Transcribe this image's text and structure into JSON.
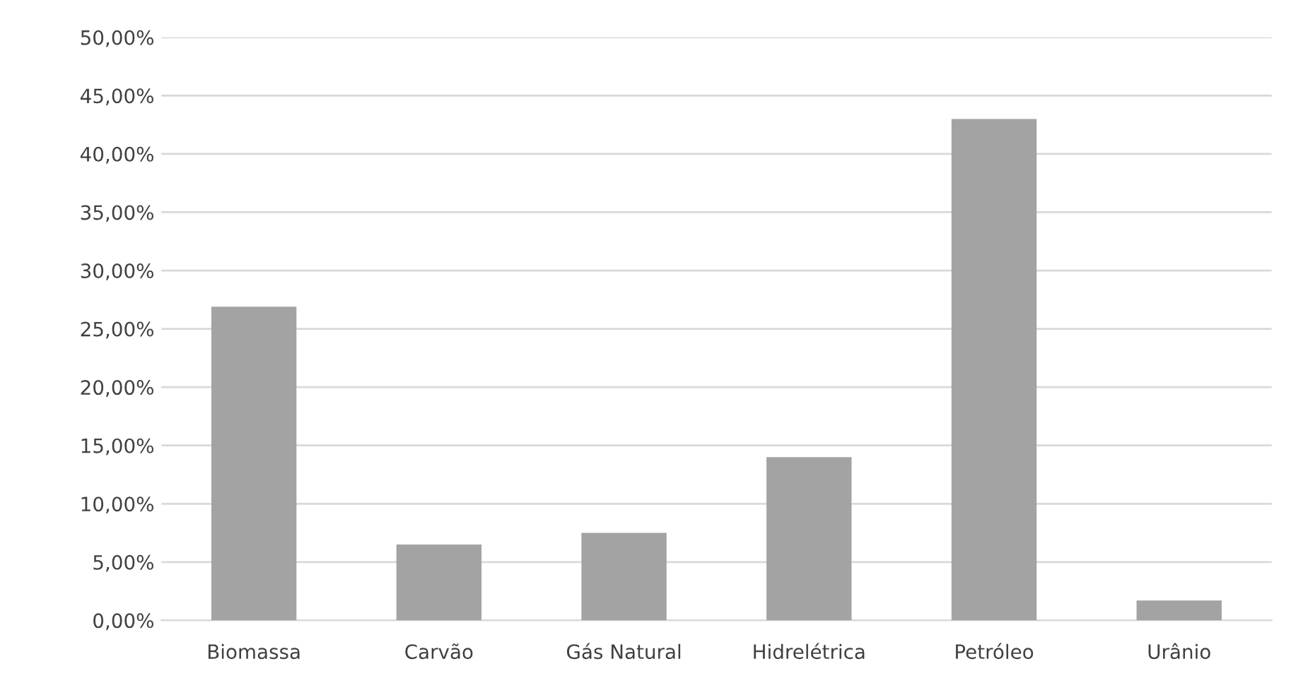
{
  "chart_data": {
    "type": "bar",
    "categories": [
      "Biomassa",
      "Carvão",
      "Gás Natural",
      "Hidrelétrica",
      "Petróleo",
      "Urânio"
    ],
    "values": [
      26.9,
      6.5,
      7.5,
      14.0,
      43.0,
      1.7
    ],
    "color": "#a3a3a3",
    "ylim": [
      0,
      50
    ],
    "yticks": [
      {
        "value": 0,
        "label": "0,00%"
      },
      {
        "value": 5,
        "label": "5,00%"
      },
      {
        "value": 10,
        "label": "10,00%"
      },
      {
        "value": 15,
        "label": "15,00%"
      },
      {
        "value": 20,
        "label": "20,00%"
      },
      {
        "value": 25,
        "label": "25,00%"
      },
      {
        "value": 30,
        "label": "30,00%"
      },
      {
        "value": 35,
        "label": "35,00%"
      },
      {
        "value": 40,
        "label": "40,00%"
      },
      {
        "value": 45,
        "label": "45,00%"
      },
      {
        "value": 50,
        "label": "50,00%"
      }
    ],
    "grid": "y"
  }
}
